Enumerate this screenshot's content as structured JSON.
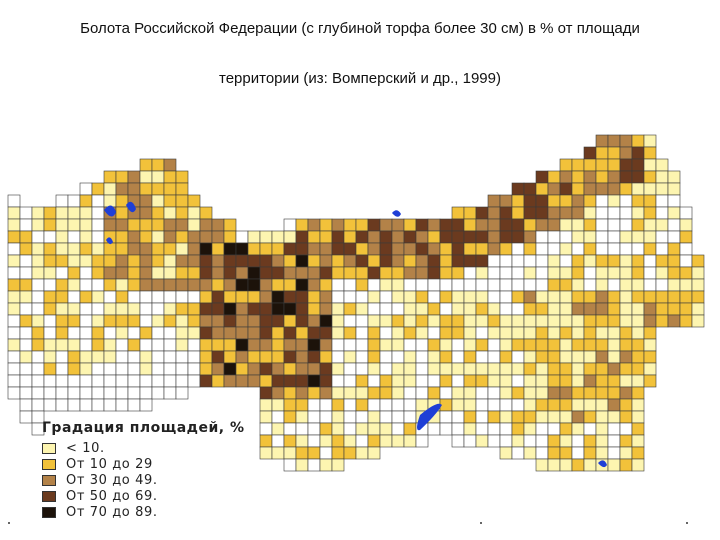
{
  "title_line1": "Болота Российской Федерации (с глубиной торфа более 30 см) в % от площади",
  "title_line2": "территории (из: Вомперский и др., 1999)",
  "legend": {
    "title": "Градация площадей, %",
    "items": [
      {
        "label": "< 10.",
        "color": "#fdf5b0"
      },
      {
        "label": "От 10 до 29",
        "color": "#f2c23a"
      },
      {
        "label": "От 30 до 49.",
        "color": "#b38248"
      },
      {
        "label": "От 50 до 69.",
        "color": "#6b3a1f"
      },
      {
        "label": "От 70 до 89.",
        "color": "#1c120a"
      }
    ]
  },
  "colors": {
    "grid_line": "#3a3a3a",
    "water": "#1f3fd6",
    "unmapped_cell": "#ffffff"
  }
}
